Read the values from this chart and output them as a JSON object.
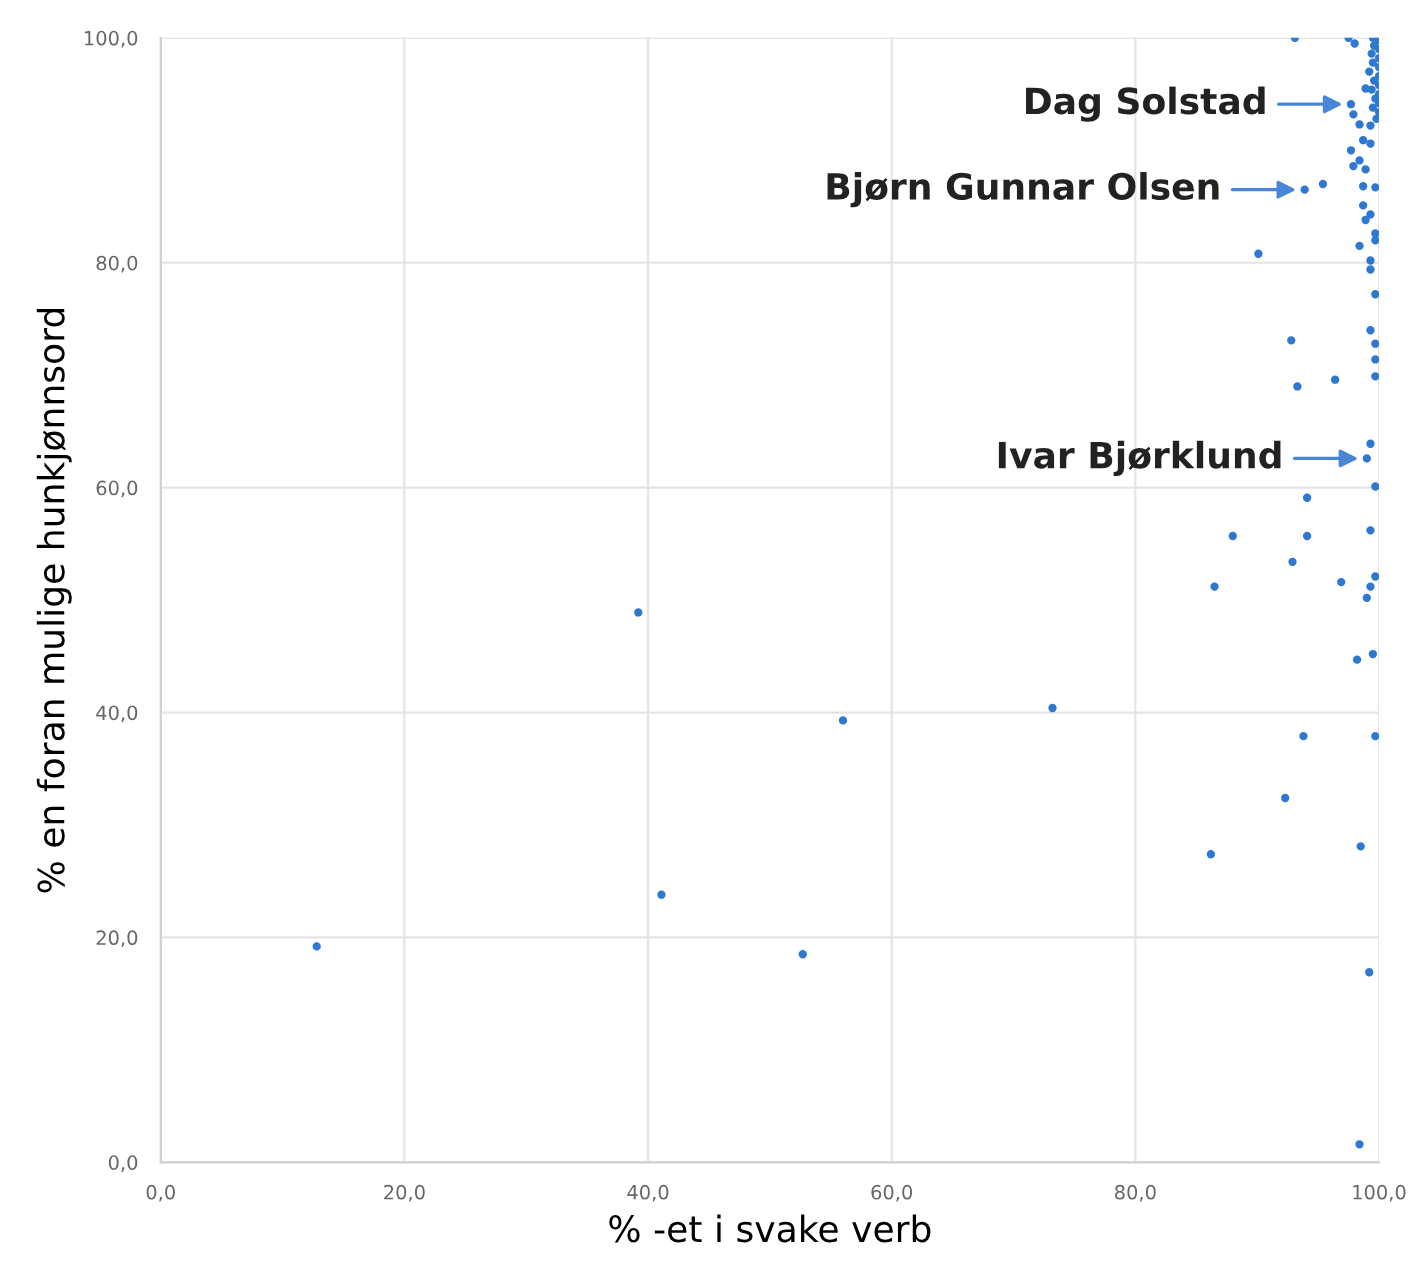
{
  "chart_data": {
    "type": "scatter",
    "xlabel": "% -et i svake verb",
    "ylabel": "% en foran mulige hunkjønnsord",
    "series": [
      {
        "color": "#2e78d2",
        "x": [
          12.8,
          39.2,
          41.1,
          56.0,
          73.2,
          52.7,
          98.2,
          99.5,
          93.8,
          99.7,
          92.3,
          86.2,
          98.5,
          99.2,
          98.4,
          93.1,
          93.9,
          95.4,
          90.1,
          98.4,
          92.8,
          93.3,
          96.4,
          99.3,
          99.7,
          99.7,
          99.7,
          99.7,
          99.3,
          99.3,
          99.7,
          99.7,
          99.3,
          99.0,
          99.7,
          94.1,
          88.0,
          94.1,
          99.3,
          92.9,
          86.5,
          96.9,
          99.7,
          99.3,
          99.0,
          97.7,
          98.4,
          98.7,
          99.3,
          97.9,
          98.9,
          98.7,
          99.7,
          98.7,
          99.3,
          98.9,
          97.7,
          97.9,
          98.4,
          99.3,
          97.5,
          98.0,
          99.5,
          100.0,
          99.6,
          100.0,
          99.4,
          100.0,
          99.5,
          100.0,
          99.2,
          100.0,
          99.6,
          100.0,
          99.4,
          100.0,
          99.7,
          100.0,
          99.5,
          100.0,
          98.9,
          99.8
        ],
        "values": [
          19.2,
          48.9,
          23.8,
          39.3,
          40.4,
          18.5,
          44.7,
          45.2,
          37.9,
          37.9,
          32.4,
          27.4,
          28.1,
          16.9,
          1.6,
          100.0,
          86.5,
          87.0,
          80.8,
          81.5,
          73.1,
          69.0,
          69.6,
          74.0,
          72.8,
          71.4,
          69.9,
          77.2,
          79.4,
          80.2,
          82.6,
          82.0,
          63.9,
          62.6,
          60.1,
          59.1,
          55.7,
          55.7,
          56.2,
          53.4,
          51.2,
          51.6,
          52.1,
          51.2,
          50.2,
          90.0,
          89.1,
          90.9,
          90.6,
          88.6,
          88.3,
          86.8,
          86.7,
          85.1,
          84.3,
          83.8,
          94.1,
          93.2,
          92.3,
          92.2,
          100.0,
          99.5,
          100.0,
          99.8,
          99.3,
          99.0,
          98.6,
          98.2,
          97.8,
          97.4,
          97.0,
          96.6,
          96.2,
          95.8,
          95.4,
          95.0,
          94.6,
          94.2,
          93.8,
          93.4,
          95.5,
          92.8
        ]
      }
    ],
    "xlim": [
      0,
      100
    ],
    "ylim": [
      0,
      100
    ],
    "xticks": [
      {
        "value": 0,
        "label": "0,0"
      },
      {
        "value": 20,
        "label": "20,0"
      },
      {
        "value": 40,
        "label": "40,0"
      },
      {
        "value": 60,
        "label": "60,0"
      },
      {
        "value": 80,
        "label": "80,0"
      },
      {
        "value": 100,
        "label": "100,0"
      }
    ],
    "yticks": [
      {
        "value": 0,
        "label": "0,0"
      },
      {
        "value": 20,
        "label": "20,0"
      },
      {
        "value": 40,
        "label": "40,0"
      },
      {
        "value": 60,
        "label": "60,0"
      },
      {
        "value": 80,
        "label": "80,0"
      },
      {
        "value": 100,
        "label": "100,0"
      }
    ],
    "annotations": [
      {
        "text": "Dag Solstad",
        "x": 97.7,
        "y": 94.1
      },
      {
        "text": "Bjørn Gunnar Olsen",
        "x": 93.9,
        "y": 86.5
      },
      {
        "text": "Ivar Bjørklund",
        "x": 99.0,
        "y": 62.6
      }
    ],
    "grid": true,
    "marker": "circle"
  }
}
